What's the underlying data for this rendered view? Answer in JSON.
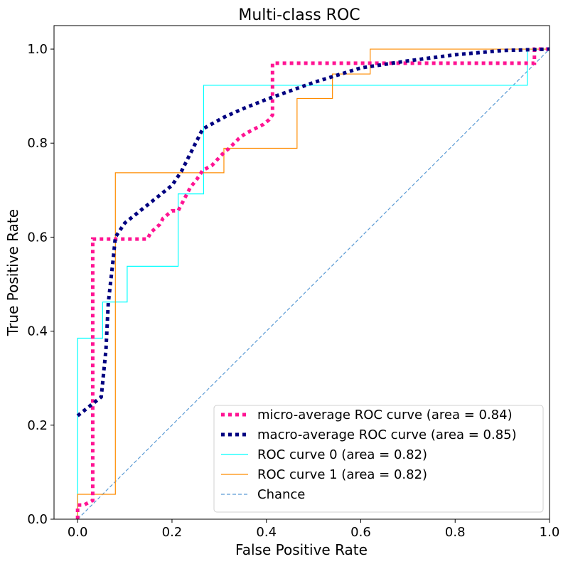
{
  "chart_data": {
    "type": "line",
    "title": "Multi-class ROC",
    "xlabel": "False Positive Rate",
    "ylabel": "True Positive Rate",
    "xlim": [
      -0.05,
      1.0
    ],
    "ylim": [
      0.0,
      1.05
    ],
    "xticks": [
      0.0,
      0.2,
      0.4,
      0.6,
      0.8,
      1.0
    ],
    "yticks": [
      0.0,
      0.2,
      0.4,
      0.6,
      0.8,
      1.0
    ],
    "xtick_labels": [
      "0.0",
      "0.2",
      "0.4",
      "0.6",
      "0.8",
      "1.0"
    ],
    "ytick_labels": [
      "0.0",
      "0.2",
      "0.4",
      "0.6",
      "0.8",
      "1.0"
    ],
    "grid": false,
    "legend_position": "lower-right",
    "series": [
      {
        "name": "micro-average ROC curve (area = 0.84)",
        "color": "#ff1493",
        "style": "dotted-thick",
        "x": [
          0.0,
          0.0,
          0.013,
          0.032,
          0.032,
          0.045,
          0.071,
          0.148,
          0.155,
          0.174,
          0.181,
          0.2,
          0.213,
          0.239,
          0.252,
          0.265,
          0.284,
          0.31,
          0.32,
          0.342,
          0.355,
          0.394,
          0.406,
          0.413,
          0.413,
          0.413,
          0.955,
          0.968,
          0.968,
          1.0
        ],
        "y": [
          0.0,
          0.03,
          0.03,
          0.04,
          0.596,
          0.596,
          0.596,
          0.596,
          0.61,
          0.627,
          0.64,
          0.656,
          0.656,
          0.706,
          0.722,
          0.742,
          0.752,
          0.78,
          0.788,
          0.81,
          0.82,
          0.84,
          0.85,
          0.86,
          0.93,
          0.97,
          0.97,
          0.97,
          1.0,
          1.0
        ]
      },
      {
        "name": "macro-average ROC curve (area = 0.85)",
        "color": "#000080",
        "style": "dotted-thick",
        "x": [
          0.0,
          0.05,
          0.06,
          0.065,
          0.075,
          0.08,
          0.1,
          0.15,
          0.2,
          0.22,
          0.25,
          0.265,
          0.31,
          0.35,
          0.4,
          0.5,
          0.6,
          0.7,
          0.8,
          0.9,
          1.0
        ],
        "y": [
          0.22,
          0.26,
          0.36,
          0.46,
          0.55,
          0.6,
          0.63,
          0.67,
          0.71,
          0.74,
          0.8,
          0.83,
          0.855,
          0.873,
          0.893,
          0.929,
          0.96,
          0.975,
          0.988,
          0.997,
          1.0
        ],
        "marker": "smooth"
      },
      {
        "name": "ROC curve 0 (area = 0.82)",
        "color": "#00ffff",
        "style": "solid",
        "x": [
          0.0,
          0.0,
          0.0,
          0.053,
          0.053,
          0.105,
          0.105,
          0.213,
          0.213,
          0.267,
          0.267,
          0.953,
          0.953,
          1.0
        ],
        "y": [
          0.0,
          0.05,
          0.385,
          0.385,
          0.462,
          0.462,
          0.538,
          0.538,
          0.692,
          0.692,
          0.923,
          0.923,
          1.0,
          1.0
        ]
      },
      {
        "name": "ROC curve 1 (area = 0.82)",
        "color": "#ff8c00",
        "style": "solid",
        "x": [
          0.0,
          0.0,
          0.08,
          0.08,
          0.31,
          0.31,
          0.465,
          0.465,
          0.54,
          0.54,
          0.62,
          0.62,
          1.0
        ],
        "y": [
          0.0,
          0.053,
          0.053,
          0.737,
          0.737,
          0.789,
          0.789,
          0.895,
          0.895,
          0.947,
          0.947,
          1.0,
          1.0
        ]
      },
      {
        "name": "Chance",
        "color": "#5b9bd5",
        "style": "dashed",
        "x": [
          0.0,
          1.0
        ],
        "y": [
          0.0,
          1.0
        ]
      }
    ]
  }
}
